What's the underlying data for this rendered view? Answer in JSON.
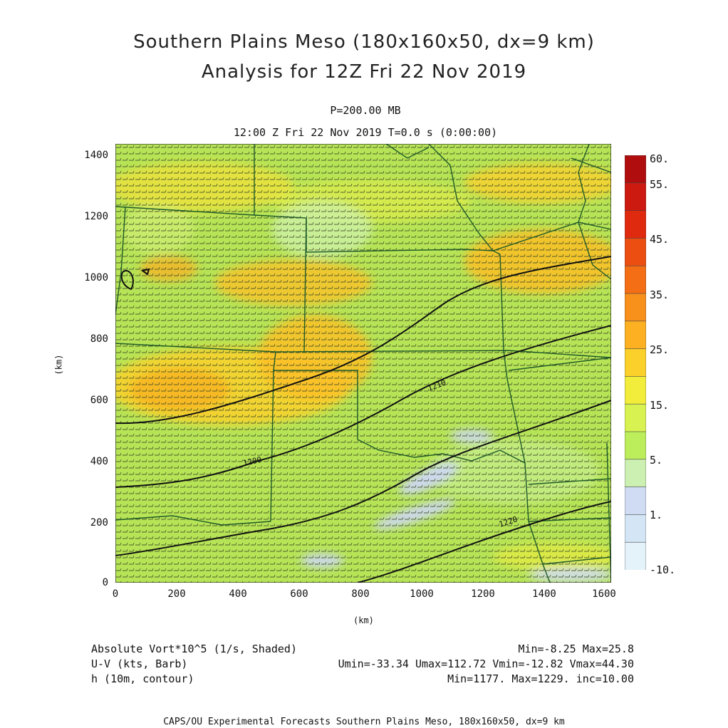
{
  "titles": {
    "line1": "Southern Plains Meso (180x160x50, dx=9 km)",
    "line2": "Analysis for 12Z Fri 22 Nov 2019",
    "pressure": "P=200.00 MB",
    "time": "12:00 Z Fri 22 Nov 2019    T=0.0 s (0:00:00)"
  },
  "axes": {
    "y_unit": "(km)",
    "x_unit": "(km)",
    "y_ticks": [
      "1400",
      "1200",
      "1000",
      "800",
      "600",
      "400",
      "200",
      "0"
    ],
    "x_ticks": [
      "0",
      "200",
      "400",
      "600",
      "800",
      "1000",
      "1200",
      "1400",
      "1600"
    ]
  },
  "colorbar": {
    "labels": [
      "60.",
      "55.",
      "45.",
      "35.",
      "25.",
      "15.",
      "5.",
      "1.",
      "-10."
    ],
    "colors": [
      "#b00e0e",
      "#cc1a10",
      "#e02a10",
      "#ec4e12",
      "#f46e16",
      "#f8901c",
      "#fcb022",
      "#fcd02a",
      "#f2ec3a",
      "#d8f252",
      "#bcee5c",
      "#ccf0b2",
      "#d0dcf4",
      "#d4e6f6",
      "#e4f2fa"
    ]
  },
  "map": {
    "base_color": "#b6e456",
    "contour_labels": [
      "1200",
      "1210",
      "1220",
      "1200"
    ]
  },
  "legend": {
    "vort_label": "Absolute Vort*10^5 (1/s, Shaded)",
    "vort_stats": "Min=-8.25 Max=25.8",
    "wind_label": "U-V (kts, Barb)",
    "wind_stats": "Umin=-33.34 Umax=112.72 Vmin=-12.82 Vmax=44.30",
    "height_label": "h (10m, contour)",
    "height_stats": "Min=1177. Max=1229. inc=10.00"
  },
  "footer": "CAPS/OU Experimental Forecasts  Southern Plains Meso, 180x160x50, dx=9 km"
}
